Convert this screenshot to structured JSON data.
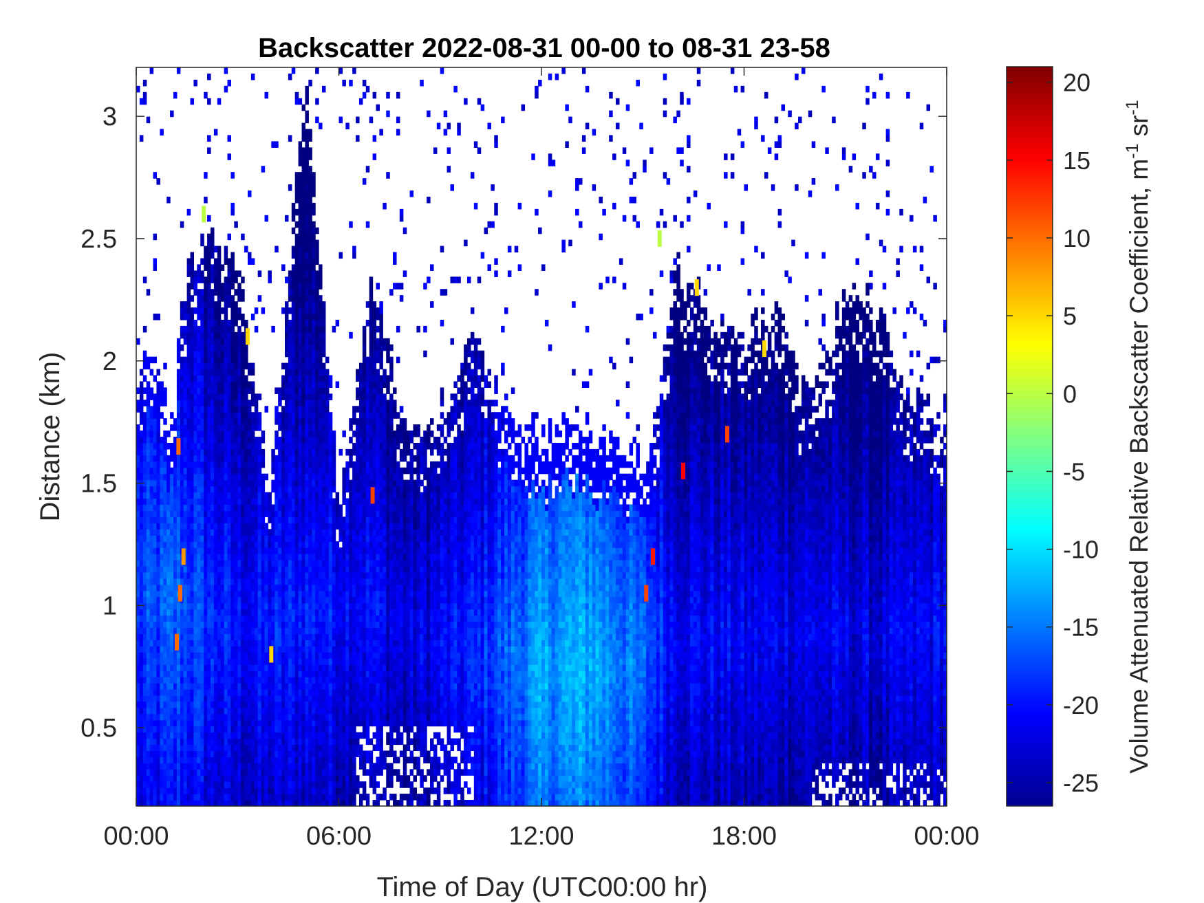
{
  "chart_data": {
    "type": "heatmap",
    "title": "Backscatter 2022-08-31 00-00 to 08-31 23-58",
    "xlabel": "Time of Day (UTC00:00 hr)",
    "ylabel": "Distance (km)",
    "xlim": [
      0,
      24
    ],
    "ylim": [
      0.18,
      3.2
    ],
    "x_ticks": [
      {
        "value": 0,
        "label": "00:00"
      },
      {
        "value": 6,
        "label": "06:00"
      },
      {
        "value": 12,
        "label": "12:00"
      },
      {
        "value": 18,
        "label": "18:00"
      },
      {
        "value": 24,
        "label": "00:00"
      }
    ],
    "y_ticks": [
      {
        "value": 0.5,
        "label": "0.5"
      },
      {
        "value": 1,
        "label": "1"
      },
      {
        "value": 1.5,
        "label": "1.5"
      },
      {
        "value": 2,
        "label": "2"
      },
      {
        "value": 2.5,
        "label": "2.5"
      },
      {
        "value": 3,
        "label": "3"
      }
    ],
    "colorbar": {
      "label": "Volume Attenuated Relative Backscatter Coefficient, m",
      "label_sup1": "-1",
      "label_mid": " sr",
      "label_sup2": "-1",
      "colormap": "jet",
      "clim": [
        -26.5,
        21
      ],
      "ticks": [
        {
          "value": 20,
          "label": "20"
        },
        {
          "value": 15,
          "label": "15"
        },
        {
          "value": 10,
          "label": "10"
        },
        {
          "value": 5,
          "label": "5"
        },
        {
          "value": 0,
          "label": "0"
        },
        {
          "value": -5,
          "label": "-5"
        },
        {
          "value": -10,
          "label": "-10"
        },
        {
          "value": -15,
          "label": "-15"
        },
        {
          "value": -20,
          "label": "-20"
        },
        {
          "value": -25,
          "label": "-25"
        }
      ]
    },
    "signal_top_km": [
      [
        0,
        1.9
      ],
      [
        0.5,
        2.1
      ],
      [
        1,
        1.7
      ],
      [
        1.5,
        2.4
      ],
      [
        2,
        2.5
      ],
      [
        3,
        2.4
      ],
      [
        4,
        1.5
      ],
      [
        5,
        3.2
      ],
      [
        6,
        1.4
      ],
      [
        7,
        2.4
      ],
      [
        8,
        1.7
      ],
      [
        9,
        1.8
      ],
      [
        10,
        2.1
      ],
      [
        11,
        1.8
      ],
      [
        12,
        1.7
      ],
      [
        13,
        1.75
      ],
      [
        14,
        1.7
      ],
      [
        15.2,
        1.6
      ],
      [
        16,
        2.4
      ],
      [
        17,
        2.2
      ],
      [
        18,
        2.1
      ],
      [
        19,
        2.2
      ],
      [
        20,
        1.8
      ],
      [
        21,
        2.3
      ],
      [
        22,
        2.2
      ],
      [
        22.7,
        1.9
      ],
      [
        23.5,
        1.8
      ],
      [
        24,
        1.8
      ]
    ],
    "intensity_profile_db": [
      [
        0,
        -18
      ],
      [
        1.2,
        -16
      ],
      [
        3,
        -20
      ],
      [
        5,
        -19
      ],
      [
        7,
        -20
      ],
      [
        8,
        -22
      ],
      [
        10,
        -19
      ],
      [
        12,
        -13
      ],
      [
        13.5,
        -12
      ],
      [
        15,
        -16
      ],
      [
        16,
        -20
      ],
      [
        18,
        -21
      ],
      [
        20,
        -21
      ],
      [
        22,
        -22
      ],
      [
        24,
        -20
      ]
    ],
    "peak_altitude_km": [
      [
        0,
        1.1
      ],
      [
        3,
        0.9
      ],
      [
        7,
        1.0
      ],
      [
        9,
        0.85
      ],
      [
        12,
        0.75
      ],
      [
        14,
        0.75
      ],
      [
        16,
        0.85
      ],
      [
        20,
        0.9
      ],
      [
        24,
        0.9
      ]
    ],
    "hotspots": [
      {
        "t": 1.2,
        "km": 0.85,
        "db": 10
      },
      {
        "t": 1.3,
        "km": 1.05,
        "db": 10
      },
      {
        "t": 1.4,
        "km": 1.2,
        "db": 8
      },
      {
        "t": 1.25,
        "km": 1.65,
        "db": 10
      },
      {
        "t": 2.0,
        "km": 2.6,
        "db": 0
      },
      {
        "t": 3.3,
        "km": 2.1,
        "db": 5
      },
      {
        "t": 4.0,
        "km": 0.8,
        "db": 5
      },
      {
        "t": 7.0,
        "km": 1.45,
        "db": 12
      },
      {
        "t": 15.1,
        "km": 1.05,
        "db": 12
      },
      {
        "t": 15.3,
        "km": 1.2,
        "db": 14
      },
      {
        "t": 15.5,
        "km": 2.5,
        "db": 0
      },
      {
        "t": 16.2,
        "km": 1.55,
        "db": 15
      },
      {
        "t": 16.6,
        "km": 2.3,
        "db": 5
      },
      {
        "t": 17.5,
        "km": 1.7,
        "db": 12
      },
      {
        "t": 18.6,
        "km": 2.05,
        "db": 5
      }
    ]
  }
}
